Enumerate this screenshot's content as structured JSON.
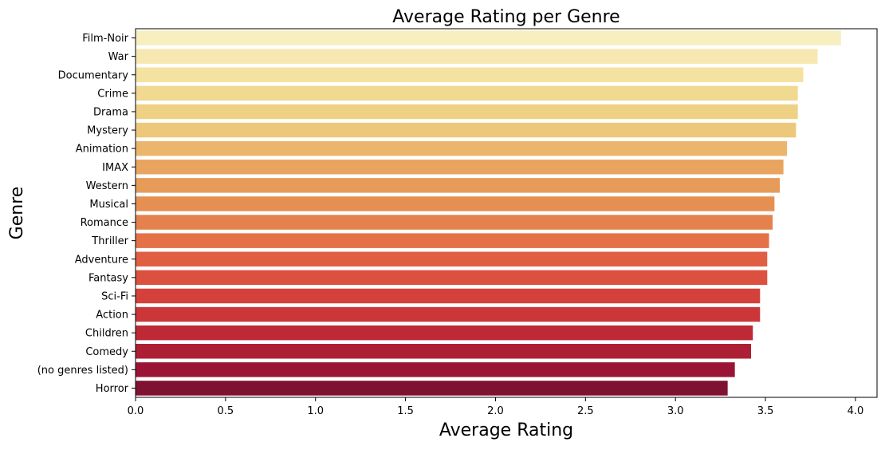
{
  "chart_data": {
    "type": "bar",
    "orientation": "horizontal",
    "title": "Average Rating per Genre",
    "xlabel": "Average Rating",
    "ylabel": "Genre",
    "xlim": [
      0,
      4.12
    ],
    "xticks": [
      0.0,
      0.5,
      1.0,
      1.5,
      2.0,
      2.5,
      3.0,
      3.5,
      4.0
    ],
    "xtick_labels": [
      "0.0",
      "0.5",
      "1.0",
      "1.5",
      "2.0",
      "2.5",
      "3.0",
      "3.5",
      "4.0"
    ],
    "grid": false,
    "categories": [
      "Film-Noir",
      "War",
      "Documentary",
      "Crime",
      "Drama",
      "Mystery",
      "Animation",
      "IMAX",
      "Western",
      "Musical",
      "Romance",
      "Thriller",
      "Adventure",
      "Fantasy",
      "Sci-Fi",
      "Action",
      "Children",
      "Comedy",
      "(no genres listed)",
      "Horror"
    ],
    "values": [
      3.92,
      3.79,
      3.71,
      3.68,
      3.68,
      3.67,
      3.62,
      3.6,
      3.58,
      3.55,
      3.54,
      3.52,
      3.51,
      3.51,
      3.47,
      3.47,
      3.43,
      3.42,
      3.33,
      3.29
    ],
    "colors": [
      "#f8efc0",
      "#f6e8b0",
      "#f4e2a0",
      "#f1d992",
      "#efd185",
      "#edc87a",
      "#ebb56c",
      "#e9a55f",
      "#e79b59",
      "#e59052",
      "#e5814d",
      "#e47148",
      "#e05e42",
      "#dc5040",
      "#d4413b",
      "#cb3738",
      "#bd2a35",
      "#ad1f34",
      "#9a1535",
      "#7e1230"
    ]
  }
}
